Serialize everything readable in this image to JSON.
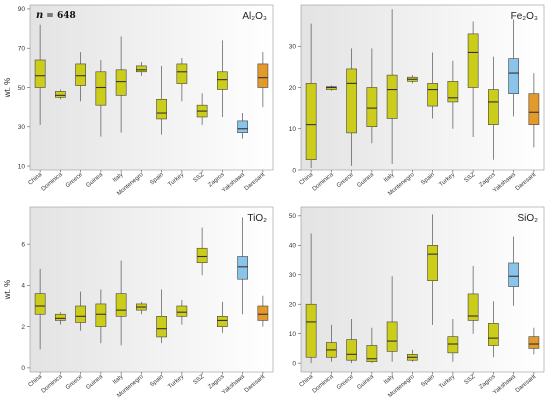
{
  "annotation": {
    "n_prefix": "n",
    "n_value": "= 648"
  },
  "chart_data": [
    {
      "type": "box",
      "panel": "top-left",
      "title": "Al₂O₃",
      "ylabel": "wt. %",
      "ylim": [
        8,
        92
      ],
      "yticks": [
        10,
        30,
        50,
        70,
        90
      ],
      "categories": [
        "China",
        "Dominica",
        "Greece",
        "Guinea",
        "Italy",
        "Montenegro",
        "Spain",
        "Turkey",
        "SSZ",
        "Zagros",
        "Yakshawa",
        "Daresarit"
      ],
      "boxes": [
        {
          "min": 31,
          "q1": 50,
          "median": 56,
          "q3": 64,
          "max": 82
        },
        {
          "min": 44,
          "q1": 45,
          "median": 46,
          "q3": 48,
          "max": 49
        },
        {
          "min": 43,
          "q1": 51,
          "median": 56,
          "q3": 62,
          "max": 68
        },
        {
          "min": 25,
          "q1": 41,
          "median": 50,
          "q3": 58,
          "max": 64
        },
        {
          "min": 27,
          "q1": 46,
          "median": 53,
          "q3": 59,
          "max": 76
        },
        {
          "min": 56,
          "q1": 58,
          "median": 59,
          "q3": 61,
          "max": 63
        },
        {
          "min": 26,
          "q1": 34,
          "median": 37,
          "q3": 44,
          "max": 61
        },
        {
          "min": 43,
          "q1": 52,
          "median": 58,
          "q3": 62,
          "max": 65
        },
        {
          "min": 31,
          "q1": 35,
          "median": 38,
          "q3": 41,
          "max": 47
        },
        {
          "min": 35,
          "q1": 49,
          "median": 54,
          "q3": 58,
          "max": 74
        },
        {
          "min": 24,
          "q1": 27,
          "median": 29,
          "q3": 33,
          "max": 37
        },
        {
          "min": 40,
          "q1": 50,
          "median": 55,
          "q3": 62,
          "max": 68
        }
      ]
    },
    {
      "type": "box",
      "panel": "top-right",
      "title": "Fe₂O₃",
      "ylabel": "",
      "ylim": [
        0,
        40
      ],
      "yticks": [
        0,
        10,
        20,
        30
      ],
      "categories": [
        "China",
        "Dominica",
        "Greece",
        "Guinea",
        "Italy",
        "Montenegro",
        "Spain",
        "Turkey",
        "SSZ",
        "Zagros",
        "Yakshawa",
        "Daresarit"
      ],
      "boxes": [
        {
          "min": 0.5,
          "q1": 2.5,
          "median": 11,
          "q3": 21,
          "max": 35.5
        },
        {
          "min": 19.2,
          "q1": 19.5,
          "median": 20,
          "q3": 20.2,
          "max": 20.5
        },
        {
          "min": 1,
          "q1": 9,
          "median": 21,
          "q3": 24.5,
          "max": 29.5
        },
        {
          "min": 6.5,
          "q1": 10.5,
          "median": 15,
          "q3": 20,
          "max": 29.5
        },
        {
          "min": 1.5,
          "q1": 12.5,
          "median": 19.5,
          "q3": 23,
          "max": 39
        },
        {
          "min": 21,
          "q1": 21.5,
          "median": 22,
          "q3": 22.5,
          "max": 23
        },
        {
          "min": 12.5,
          "q1": 15.5,
          "median": 19.5,
          "q3": 21,
          "max": 28.5
        },
        {
          "min": 10,
          "q1": 16.5,
          "median": 17.5,
          "q3": 21.5,
          "max": 26.5
        },
        {
          "min": 8,
          "q1": 20,
          "median": 28.5,
          "q3": 33,
          "max": 36
        },
        {
          "min": 2.5,
          "q1": 11,
          "median": 16.5,
          "q3": 19.5,
          "max": 27.5
        },
        {
          "min": 13,
          "q1": 18.5,
          "median": 23.5,
          "q3": 27,
          "max": 36.5
        },
        {
          "min": 5.5,
          "q1": 11,
          "median": 14,
          "q3": 18.5,
          "max": 23.5
        }
      ]
    },
    {
      "type": "box",
      "panel": "bottom-left",
      "title": "TiO₂",
      "ylabel": "wt. %",
      "ylim": [
        -0.2,
        7.8
      ],
      "yticks": [
        0,
        2,
        4,
        6
      ],
      "categories": [
        "China",
        "Dominica",
        "Greece",
        "Guinea",
        "Italy",
        "Montenegro",
        "Spain",
        "Turkey",
        "SSZ",
        "Zagros",
        "Yakshawa",
        "Daresarit"
      ],
      "boxes": [
        {
          "min": 0.9,
          "q1": 2.6,
          "median": 3.0,
          "q3": 3.6,
          "max": 4.8
        },
        {
          "min": 2.1,
          "q1": 2.3,
          "median": 2.4,
          "q3": 2.6,
          "max": 2.7
        },
        {
          "min": 1.8,
          "q1": 2.2,
          "median": 2.5,
          "q3": 3.0,
          "max": 3.7
        },
        {
          "min": 1.2,
          "q1": 2.0,
          "median": 2.6,
          "q3": 3.1,
          "max": 3.8
        },
        {
          "min": 1.1,
          "q1": 2.5,
          "median": 2.8,
          "q3": 3.6,
          "max": 5.2
        },
        {
          "min": 2.6,
          "q1": 2.8,
          "median": 2.95,
          "q3": 3.1,
          "max": 3.2
        },
        {
          "min": 1.2,
          "q1": 1.5,
          "median": 1.9,
          "q3": 2.5,
          "max": 3.8
        },
        {
          "min": 2.1,
          "q1": 2.5,
          "median": 2.7,
          "q3": 3.0,
          "max": 3.3
        },
        {
          "min": 4.5,
          "q1": 5.1,
          "median": 5.4,
          "q3": 5.8,
          "max": 6.8
        },
        {
          "min": 1.7,
          "q1": 2.0,
          "median": 2.3,
          "q3": 2.5,
          "max": 3.2
        },
        {
          "min": 2.6,
          "q1": 4.3,
          "median": 4.9,
          "q3": 5.4,
          "max": 7.3
        },
        {
          "min": 2.0,
          "q1": 2.3,
          "median": 2.6,
          "q3": 3.0,
          "max": 3.5
        }
      ]
    },
    {
      "type": "box",
      "panel": "bottom-right",
      "title": "SiO₂",
      "ylabel": "",
      "ylim": [
        -3,
        53
      ],
      "yticks": [
        0,
        10,
        20,
        30,
        40,
        50
      ],
      "categories": [
        "China",
        "Dominica",
        "Greece",
        "Guinea",
        "Italy",
        "Montenegro",
        "Spain",
        "Turkey",
        "SSZ",
        "Zagros",
        "Yakshawa",
        "Daresarit"
      ],
      "boxes": [
        {
          "min": 0,
          "q1": 2,
          "median": 14,
          "q3": 20,
          "max": 44
        },
        {
          "min": 0.5,
          "q1": 2,
          "median": 4.5,
          "q3": 7,
          "max": 13
        },
        {
          "min": 0,
          "q1": 1,
          "median": 3,
          "q3": 8,
          "max": 15
        },
        {
          "min": 0,
          "q1": 0.5,
          "median": 1.5,
          "q3": 6,
          "max": 12
        },
        {
          "min": 0.5,
          "q1": 4,
          "median": 7.5,
          "q3": 14,
          "max": 29.5
        },
        {
          "min": 0.5,
          "q1": 1,
          "median": 2,
          "q3": 3,
          "max": 4.5
        },
        {
          "min": 13,
          "q1": 28,
          "median": 37,
          "q3": 40,
          "max": 50.5
        },
        {
          "min": 0.5,
          "q1": 3.5,
          "median": 6.5,
          "q3": 9,
          "max": 15
        },
        {
          "min": 10,
          "q1": 14.5,
          "median": 16,
          "q3": 23.5,
          "max": 33
        },
        {
          "min": 2,
          "q1": 6,
          "median": 8.5,
          "q3": 13.5,
          "max": 21
        },
        {
          "min": 19.5,
          "q1": 26,
          "median": 29.5,
          "q3": 34,
          "max": 43
        },
        {
          "min": 3,
          "q1": 5,
          "median": 6.5,
          "q3": 9,
          "max": 12
        }
      ]
    }
  ],
  "colors": {
    "box_default": "#cccc1a",
    "box_yakshawa": "#8ac4ea",
    "box_daresarit": "#e39a2b",
    "median": "#333333",
    "whisker": "#555555",
    "panel_bg_left": "#e3e3e3",
    "panel_bg_right": "#ffffff"
  }
}
